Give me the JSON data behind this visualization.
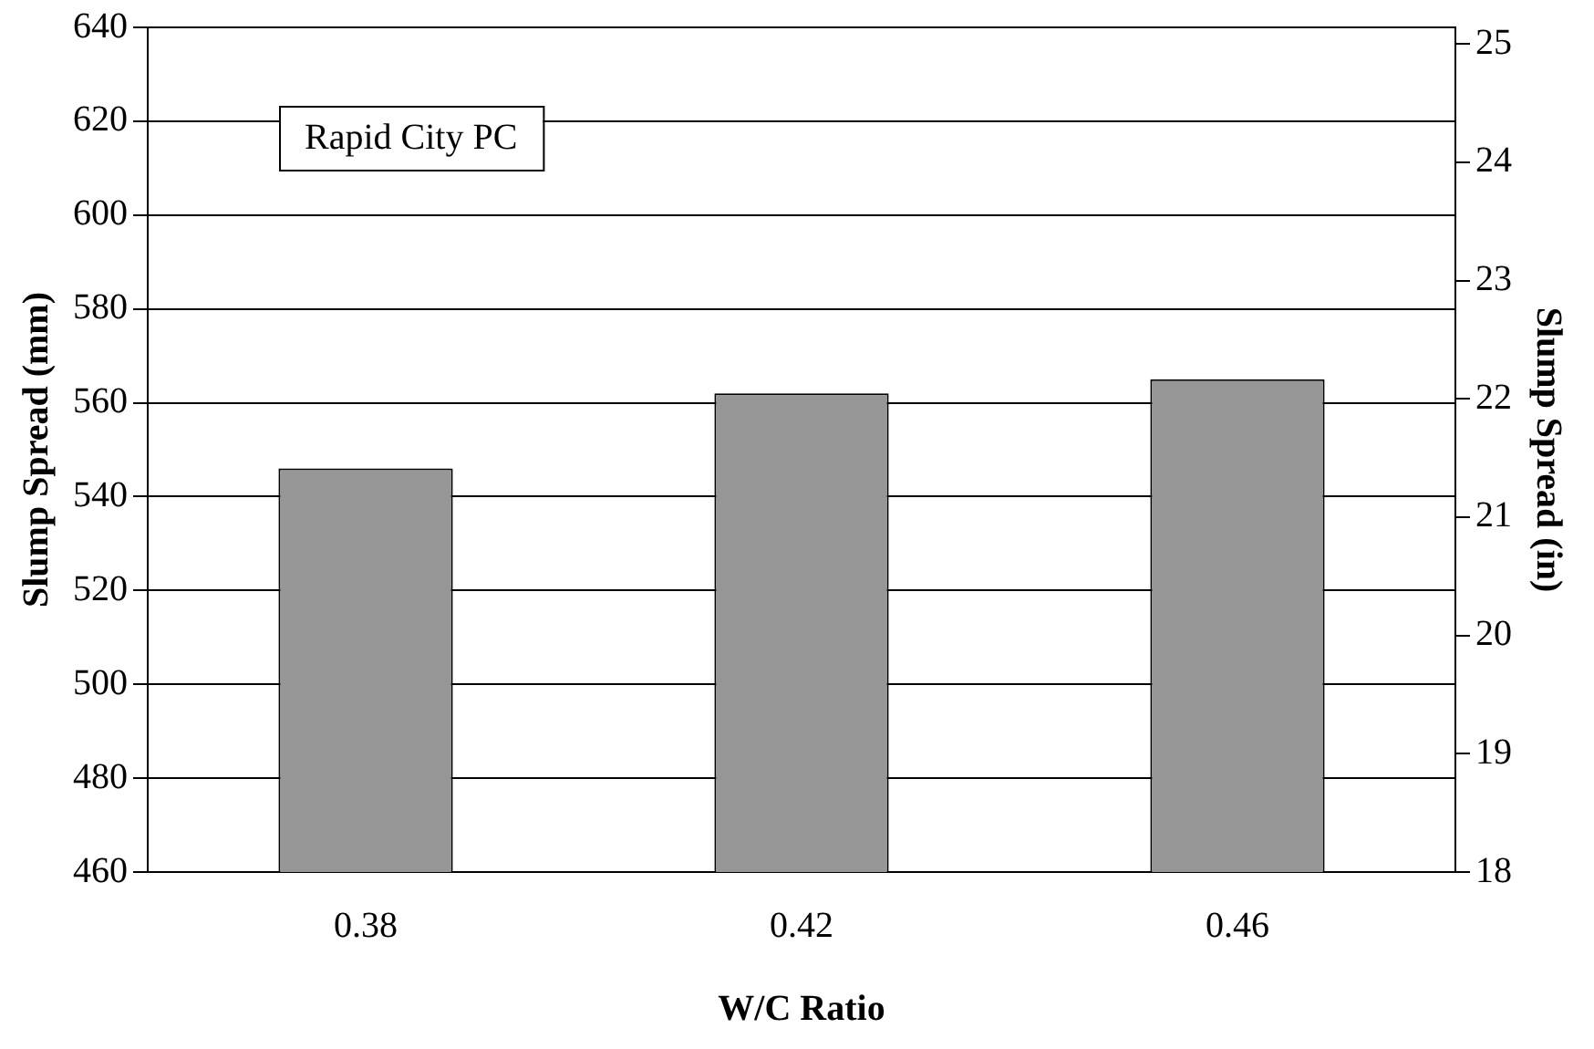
{
  "chart_data": {
    "type": "bar",
    "categories": [
      "0.38",
      "0.42",
      "0.46"
    ],
    "values": [
      546,
      562,
      565
    ],
    "color": "#969696",
    "xlabel": "W/C Ratio",
    "ylabel": "Slump Spread (mm)",
    "y2label": "Slump Spread (in)",
    "ylim": [
      460,
      640
    ],
    "yticks": [
      460,
      480,
      500,
      520,
      540,
      560,
      580,
      600,
      620,
      640
    ],
    "y2lim": [
      18,
      25.14
    ],
    "y2ticks": [
      18,
      19,
      20,
      21,
      22,
      23,
      24,
      25
    ],
    "grid": "y",
    "legend": false,
    "annotations": [
      "Rapid City PC"
    ]
  }
}
